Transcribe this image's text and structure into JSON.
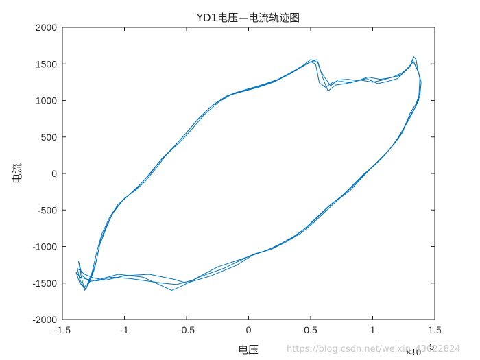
{
  "chart_data": {
    "type": "line",
    "title": "YD1电压—电流轨迹图",
    "xlabel": "电压",
    "ylabel": "电流",
    "x_exponent_label": "×10",
    "x_exponent_power": "5",
    "xlim": [
      -1.5,
      1.5
    ],
    "ylim": [
      -2000,
      2000
    ],
    "xticks": [
      -1.5,
      -1,
      -0.5,
      0,
      0.5,
      1,
      1.5
    ],
    "xtick_labels": [
      "-1.5",
      "-1",
      "-0.5",
      "0",
      "0.5",
      "1",
      "1.5"
    ],
    "yticks": [
      -2000,
      -1500,
      -1000,
      -500,
      0,
      500,
      1000,
      1500,
      2000
    ],
    "ytick_labels": [
      "-2000",
      "-1500",
      "-1000",
      "-500",
      "0",
      "500",
      "1000",
      "1500",
      "2000"
    ],
    "grid": false,
    "series_color": "#0072BD",
    "series": [
      {
        "x": [
          -1.38,
          -1.36,
          -1.33,
          -1.3,
          -1.26,
          -1.22,
          -1.18,
          -1.12,
          -1.05,
          -0.98,
          -0.9,
          -0.82,
          -0.72,
          -0.62,
          -0.52,
          -0.42,
          -0.3,
          -0.18,
          -0.05,
          0.08,
          0.2,
          0.32,
          0.42,
          0.5,
          0.54,
          0.57,
          0.62,
          0.68,
          0.75,
          0.82,
          0.9,
          1.0,
          1.08,
          1.16,
          1.24,
          1.28,
          1.3,
          1.33,
          1.36,
          1.38,
          1.38,
          1.35,
          1.3,
          1.24,
          1.18,
          1.12,
          1.05,
          0.98,
          0.9,
          0.82,
          0.72,
          0.62,
          0.52,
          0.42,
          0.3,
          0.18,
          0.05,
          -0.1,
          -0.3,
          -0.5,
          -0.6,
          -0.8,
          -1.0,
          -1.15,
          -1.25,
          -1.32,
          -1.38
        ],
        "y": [
          -1300,
          -1450,
          -1560,
          -1520,
          -1350,
          -1050,
          -820,
          -600,
          -420,
          -320,
          -200,
          -50,
          160,
          330,
          520,
          720,
          920,
          1060,
          1120,
          1180,
          1250,
          1350,
          1450,
          1530,
          1500,
          1240,
          1180,
          1250,
          1260,
          1240,
          1280,
          1250,
          1280,
          1320,
          1380,
          1440,
          1480,
          1530,
          1420,
          1320,
          1100,
          960,
          820,
          560,
          420,
          300,
          180,
          60,
          -80,
          -230,
          -360,
          -520,
          -680,
          -820,
          -940,
          -1040,
          -1100,
          -1260,
          -1400,
          -1500,
          -1450,
          -1380,
          -1400,
          -1460,
          -1430,
          -1380,
          -1300
        ]
      },
      {
        "x": [
          -1.37,
          -1.35,
          -1.32,
          -1.28,
          -1.24,
          -1.2,
          -1.15,
          -1.1,
          -1.02,
          -0.95,
          -0.88,
          -0.8,
          -0.7,
          -0.6,
          -0.5,
          -0.4,
          -0.28,
          -0.15,
          -0.02,
          0.1,
          0.22,
          0.34,
          0.44,
          0.5,
          0.56,
          0.6,
          0.64,
          0.7,
          0.78,
          0.86,
          0.95,
          1.04,
          1.12,
          1.2,
          1.26,
          1.3,
          1.32,
          1.34,
          1.37,
          1.39,
          1.38,
          1.34,
          1.29,
          1.22,
          1.16,
          1.1,
          1.02,
          0.95,
          0.87,
          0.78,
          0.68,
          0.58,
          0.48,
          0.38,
          0.26,
          0.14,
          0.02,
          -0.2,
          -0.4,
          -0.55,
          -0.62,
          -0.85,
          -1.05,
          -1.2,
          -1.28,
          -1.34,
          -1.37
        ],
        "y": [
          -1200,
          -1400,
          -1600,
          -1480,
          -1300,
          -980,
          -760,
          -560,
          -380,
          -270,
          -160,
          -20,
          200,
          370,
          560,
          760,
          950,
          1080,
          1140,
          1200,
          1270,
          1380,
          1480,
          1560,
          1520,
          1300,
          1130,
          1210,
          1230,
          1260,
          1300,
          1230,
          1260,
          1300,
          1400,
          1460,
          1560,
          1490,
          1380,
          1250,
          1060,
          900,
          760,
          520,
          380,
          260,
          130,
          20,
          -120,
          -270,
          -400,
          -560,
          -720,
          -850,
          -960,
          -1060,
          -1120,
          -1300,
          -1420,
          -1550,
          -1600,
          -1420,
          -1380,
          -1450,
          -1480,
          -1400,
          -1200
        ]
      },
      {
        "x": [
          -1.39,
          -1.36,
          -1.31,
          -1.27,
          -1.23,
          -1.19,
          -1.14,
          -1.08,
          -1.0,
          -0.92,
          -0.84,
          -0.76,
          -0.66,
          -0.56,
          -0.46,
          -0.36,
          -0.24,
          -0.12,
          0.0,
          0.12,
          0.24,
          0.36,
          0.45,
          0.52,
          0.55,
          0.58,
          0.66,
          0.72,
          0.8,
          0.88,
          0.96,
          1.06,
          1.14,
          1.22,
          1.27,
          1.31,
          1.33,
          1.35,
          1.36,
          1.38,
          1.37,
          1.33,
          1.28,
          1.2,
          1.14,
          1.08,
          1.0,
          0.92,
          0.84,
          0.75,
          0.65,
          0.55,
          0.45,
          0.35,
          0.22,
          0.1,
          -0.02,
          -0.25,
          -0.45,
          -0.58,
          -0.7,
          -0.95,
          -1.1,
          -1.22,
          -1.3,
          -1.36,
          -1.39
        ],
        "y": [
          -1350,
          -1500,
          -1580,
          -1420,
          -1220,
          -900,
          -700,
          -500,
          -340,
          -240,
          -120,
          40,
          260,
          420,
          600,
          800,
          980,
          1100,
          1160,
          1220,
          1290,
          1400,
          1490,
          1540,
          1560,
          1400,
          1200,
          1280,
          1290,
          1270,
          1320,
          1290,
          1310,
          1340,
          1420,
          1500,
          1600,
          1560,
          1450,
          1300,
          1000,
          860,
          700,
          480,
          340,
          220,
          90,
          -20,
          -160,
          -310,
          -440,
          -600,
          -760,
          -880,
          -1000,
          -1080,
          -1150,
          -1280,
          -1460,
          -1520,
          -1500,
          -1440,
          -1420,
          -1470,
          -1450,
          -1420,
          -1350
        ]
      }
    ]
  },
  "watermark": "https://blog.csdn.net/weixin_43022824"
}
